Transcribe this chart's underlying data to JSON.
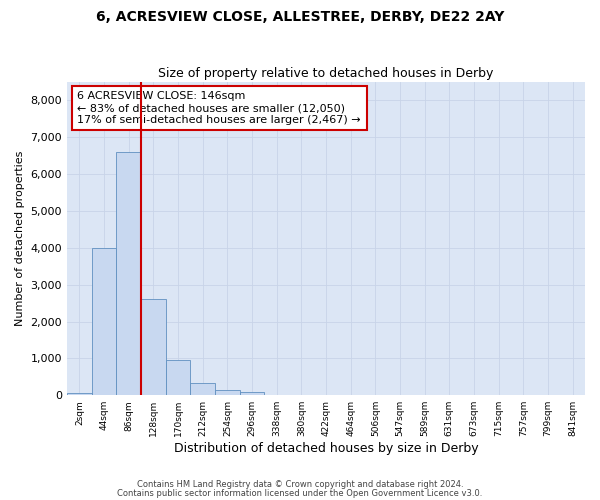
{
  "title1": "6, ACRESVIEW CLOSE, ALLESTREE, DERBY, DE22 2AY",
  "title2": "Size of property relative to detached houses in Derby",
  "xlabel": "Distribution of detached houses by size in Derby",
  "ylabel": "Number of detached properties",
  "bar_categories": [
    "2sqm",
    "44sqm",
    "86sqm",
    "128sqm",
    "170sqm",
    "212sqm",
    "254sqm",
    "296sqm",
    "338sqm",
    "380sqm",
    "422sqm",
    "464sqm",
    "506sqm",
    "547sqm",
    "589sqm",
    "631sqm",
    "673sqm",
    "715sqm",
    "757sqm",
    "799sqm",
    "841sqm"
  ],
  "bar_values": [
    50,
    4000,
    6600,
    2600,
    950,
    340,
    130,
    90,
    0,
    0,
    0,
    0,
    0,
    0,
    0,
    0,
    0,
    0,
    0,
    0,
    0
  ],
  "bar_color": "#c8d8f0",
  "bar_edge_color": "#6090c0",
  "grid_color": "#c8d4e8",
  "background_color": "#dce6f5",
  "vline_x": 2.5,
  "vline_color": "#cc0000",
  "annotation_title": "6 ACRESVIEW CLOSE: 146sqm",
  "annotation_line1": "← 83% of detached houses are smaller (12,050)",
  "annotation_line2": "17% of semi-detached houses are larger (2,467) →",
  "annotation_box_color": "#cc0000",
  "ylim": [
    0,
    8500
  ],
  "yticks": [
    0,
    1000,
    2000,
    3000,
    4000,
    5000,
    6000,
    7000,
    8000
  ],
  "footer1": "Contains HM Land Registry data © Crown copyright and database right 2024.",
  "footer2": "Contains public sector information licensed under the Open Government Licence v3.0."
}
